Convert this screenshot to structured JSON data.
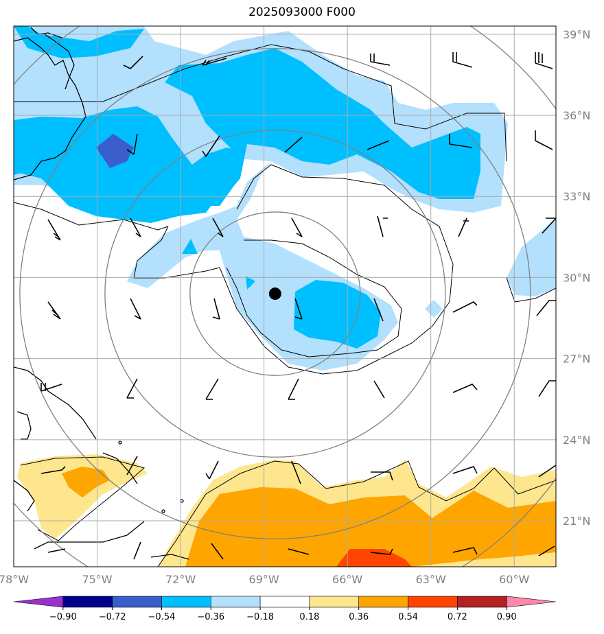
{
  "title": "2025093000 F000",
  "map": {
    "lon_range": [
      -78.0,
      -58.5
    ],
    "lat_range": [
      19.3,
      39.3
    ],
    "lon_ticks": [
      {
        "value": -78,
        "label": "78°W"
      },
      {
        "value": -75,
        "label": "75°W"
      },
      {
        "value": -72,
        "label": "72°W"
      },
      {
        "value": -69,
        "label": "69°W"
      },
      {
        "value": -66,
        "label": "66°W"
      },
      {
        "value": -63,
        "label": "63°W"
      },
      {
        "value": -60,
        "label": "60°W"
      }
    ],
    "lat_ticks": [
      {
        "value": 21,
        "label": "21°N"
      },
      {
        "value": 24,
        "label": "24°N"
      },
      {
        "value": 27,
        "label": "27°N"
      },
      {
        "value": 30,
        "label": "30°N"
      },
      {
        "value": 33,
        "label": "33°N"
      },
      {
        "value": 36,
        "label": "36°N"
      },
      {
        "value": 39,
        "label": "39°N"
      }
    ],
    "grid": true,
    "storm_center": {
      "lon": -68.6,
      "lat": 29.4
    },
    "range_rings_deg": [
      3,
      6,
      9,
      12
    ],
    "colors": {
      "light_blue": "#b3e0fd",
      "blue": "#00bfff",
      "dark_blue": "#3a5fcd",
      "yellow": "#fde68d",
      "orange": "#ffa500",
      "red_orange": "#ff4500"
    }
  },
  "colorbar": {
    "ticks": [
      "−0.90",
      "−0.72",
      "−0.54",
      "−0.36",
      "−0.18",
      "0.18",
      "0.36",
      "0.54",
      "0.72",
      "0.90"
    ],
    "colors": [
      "#9932cc",
      "#00008b",
      "#3a5fcd",
      "#00bfff",
      "#b3e0fd",
      "#ffffff",
      "#fde68d",
      "#ffa500",
      "#ff4500",
      "#b22222",
      "#ff88aa"
    ]
  }
}
